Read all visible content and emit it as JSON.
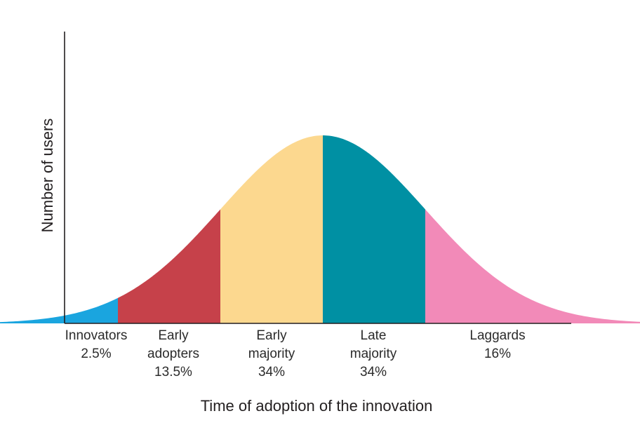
{
  "chart_data": {
    "type": "area",
    "title": "",
    "xlabel": "Time of adoption of the innovation",
    "ylabel": "Number of users",
    "grid": false,
    "legend": "none",
    "distribution": "normal",
    "x_range_sd": [
      -3.7,
      3.3
    ],
    "segments": [
      {
        "name": [
          "Innovators"
        ],
        "percent": "2.5%",
        "value": 2.5,
        "from_sd": -3.7,
        "to_sd": -2.0,
        "color": "#1aa5df"
      },
      {
        "name": [
          "Early",
          "adopters"
        ],
        "percent": "13.5%",
        "value": 13.5,
        "from_sd": -2.0,
        "to_sd": -1.0,
        "color": "#c6414a"
      },
      {
        "name": [
          "Early",
          "majority"
        ],
        "percent": "34%",
        "value": 34,
        "from_sd": -1.0,
        "to_sd": 0.0,
        "color": "#fcd88f"
      },
      {
        "name": [
          "Late",
          "majority"
        ],
        "percent": "34%",
        "value": 34,
        "from_sd": 0.0,
        "to_sd": 1.0,
        "color": "#0090a3"
      },
      {
        "name": [
          "Laggards"
        ],
        "percent": "16%",
        "value": 16,
        "from_sd": 1.0,
        "to_sd": 3.3,
        "color": "#f28ab8"
      }
    ]
  }
}
